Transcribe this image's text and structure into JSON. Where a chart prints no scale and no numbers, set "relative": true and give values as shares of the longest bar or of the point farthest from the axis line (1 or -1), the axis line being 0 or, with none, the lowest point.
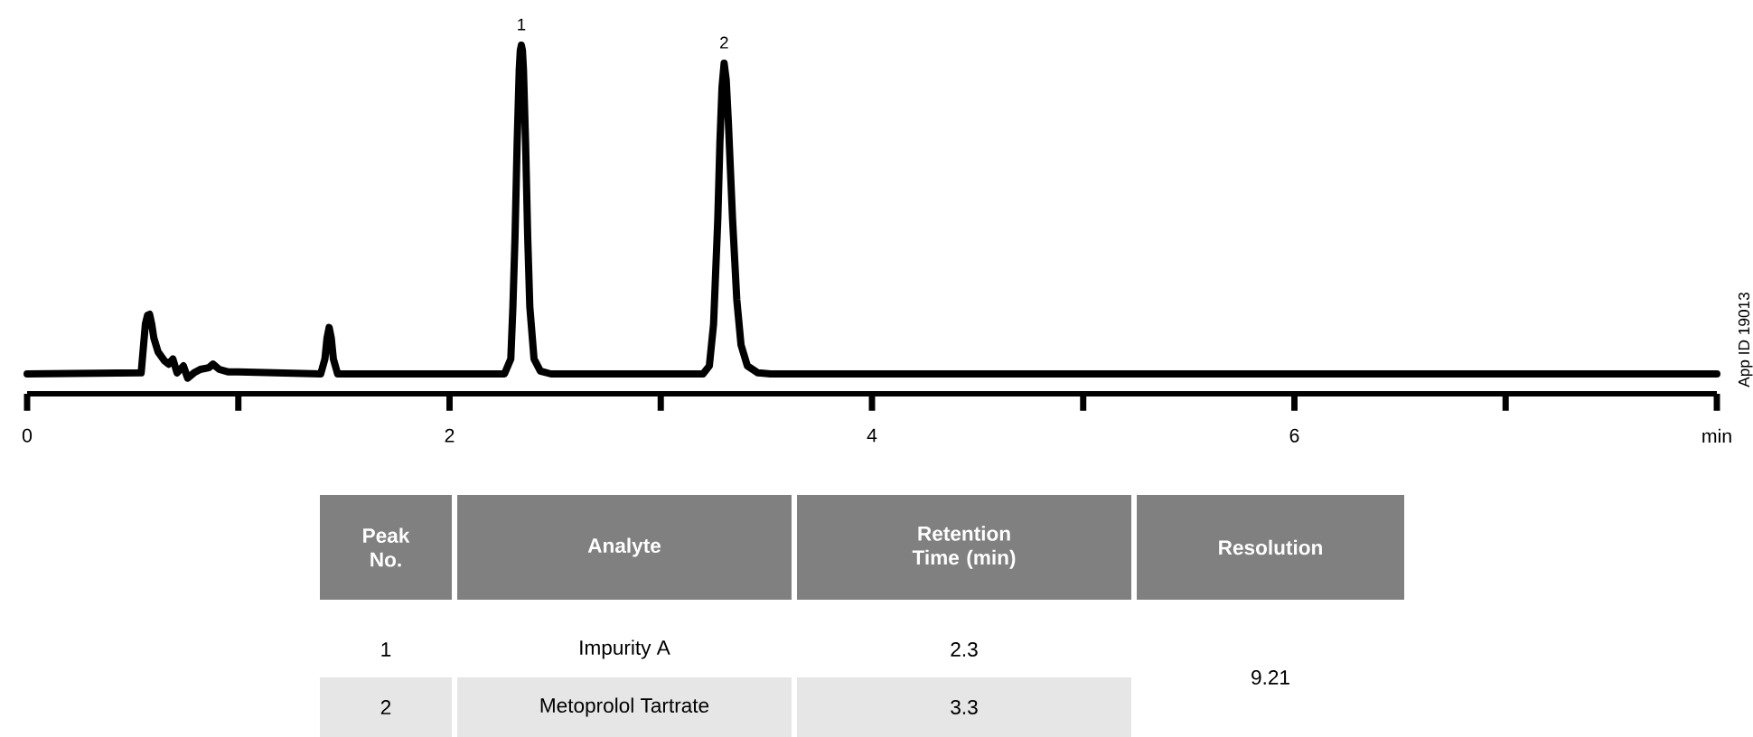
{
  "chart_data": {
    "type": "line",
    "relative": true,
    "color": "#000000",
    "x": [
      0,
      0.54,
      0.55,
      0.56,
      0.57,
      0.58,
      0.59,
      0.6,
      0.62,
      0.65,
      0.67,
      0.69,
      0.71,
      0.74,
      0.76,
      0.79,
      0.82,
      0.86,
      0.88,
      0.91,
      0.95,
      1.0,
      1.39,
      1.41,
      1.42,
      1.43,
      1.44,
      1.45,
      1.47,
      2.26,
      2.29,
      2.3,
      2.31,
      2.32,
      2.33,
      2.335,
      2.34,
      2.345,
      2.35,
      2.36,
      2.37,
      2.38,
      2.4,
      2.43,
      2.48,
      3.2,
      3.23,
      3.25,
      3.27,
      3.28,
      3.29,
      3.3,
      3.31,
      3.32,
      3.34,
      3.36,
      3.38,
      3.41,
      3.46,
      3.52,
      8
    ],
    "values": [
      0.057,
      0.06,
      0.13,
      0.2,
      0.225,
      0.228,
      0.2,
      0.16,
      0.12,
      0.095,
      0.085,
      0.1,
      0.06,
      0.08,
      0.045,
      0.06,
      0.07,
      0.075,
      0.085,
      0.07,
      0.063,
      0.063,
      0.057,
      0.1,
      0.16,
      0.19,
      0.16,
      0.1,
      0.057,
      0.057,
      0.1,
      0.25,
      0.45,
      0.72,
      0.93,
      0.985,
      1,
      0.985,
      0.93,
      0.72,
      0.45,
      0.25,
      0.1,
      0.065,
      0.057,
      0.057,
      0.08,
      0.2,
      0.5,
      0.72,
      0.88,
      0.948,
      0.9,
      0.78,
      0.5,
      0.27,
      0.14,
      0.08,
      0.06,
      0.057,
      0.057
    ],
    "xlim": [
      0,
      8
    ],
    "xticks": [
      0,
      {
        "value": 1,
        "label": null
      },
      2,
      {
        "value": 3,
        "label": null
      },
      4,
      {
        "value": 5,
        "label": null
      },
      6,
      {
        "value": 7,
        "label": null
      },
      {
        "value": 8,
        "label": "min"
      }
    ],
    "annotations": [
      {
        "text": "1",
        "x": 2.34,
        "y": 1
      },
      {
        "text": "2",
        "x": 3.3,
        "y": 0.948
      },
      "App ID 19013",
      "Peak No.",
      "Analyte",
      "Retention Time (min)",
      "Resolution",
      "1",
      "Impurity A",
      "2.3",
      "2",
      "Metoprolol Tartrate",
      "3.3",
      "9.21"
    ]
  }
}
